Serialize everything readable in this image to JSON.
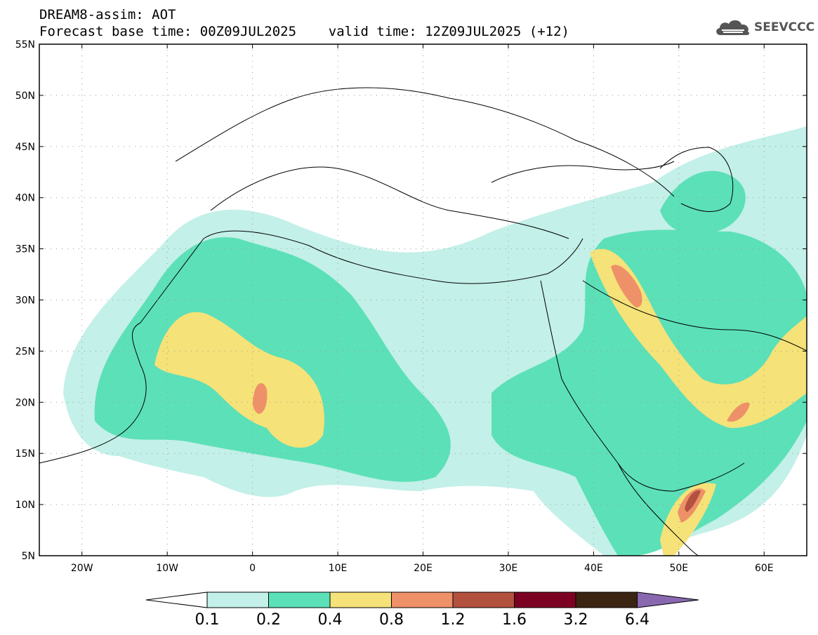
{
  "header": {
    "line1": "DREAM8-assim: AOT",
    "line2": "Forecast base time: 00Z09JUL2025    valid time: 12Z09JUL2025 (+12)"
  },
  "logo": {
    "text": "SEEVCCC",
    "icon": "cloud-icon"
  },
  "map": {
    "lon_range": [
      -25,
      65
    ],
    "lat_range": [
      5,
      55
    ],
    "lat_ticks": [
      {
        "value": 55,
        "label": "55N"
      },
      {
        "value": 50,
        "label": "50N"
      },
      {
        "value": 45,
        "label": "45N"
      },
      {
        "value": 40,
        "label": "40N"
      },
      {
        "value": 35,
        "label": "35N"
      },
      {
        "value": 30,
        "label": "30N"
      },
      {
        "value": 25,
        "label": "25N"
      },
      {
        "value": 20,
        "label": "20N"
      },
      {
        "value": 15,
        "label": "15N"
      },
      {
        "value": 10,
        "label": "10N"
      },
      {
        "value": 5,
        "label": "5N"
      }
    ],
    "lon_ticks": [
      {
        "value": -20,
        "label": "20W"
      },
      {
        "value": -10,
        "label": "10W"
      },
      {
        "value": 0,
        "label": "0"
      },
      {
        "value": 10,
        "label": "10E"
      },
      {
        "value": 20,
        "label": "20E"
      },
      {
        "value": 30,
        "label": "30E"
      },
      {
        "value": 40,
        "label": "40E"
      },
      {
        "value": 50,
        "label": "50E"
      },
      {
        "value": 60,
        "label": "60E"
      }
    ],
    "grid": "dotted"
  },
  "colorbar": {
    "colors": [
      "#c3f0e8",
      "#5ce0b8",
      "#f5e278",
      "#ee9168",
      "#b3513f",
      "#7c0022",
      "#3c2413",
      "#8a68b0"
    ],
    "low_color": "#ffffff",
    "labels": [
      "0.1",
      "0.2",
      "0.4",
      "0.8",
      "1.2",
      "1.6",
      "3.2",
      "6.4"
    ]
  }
}
